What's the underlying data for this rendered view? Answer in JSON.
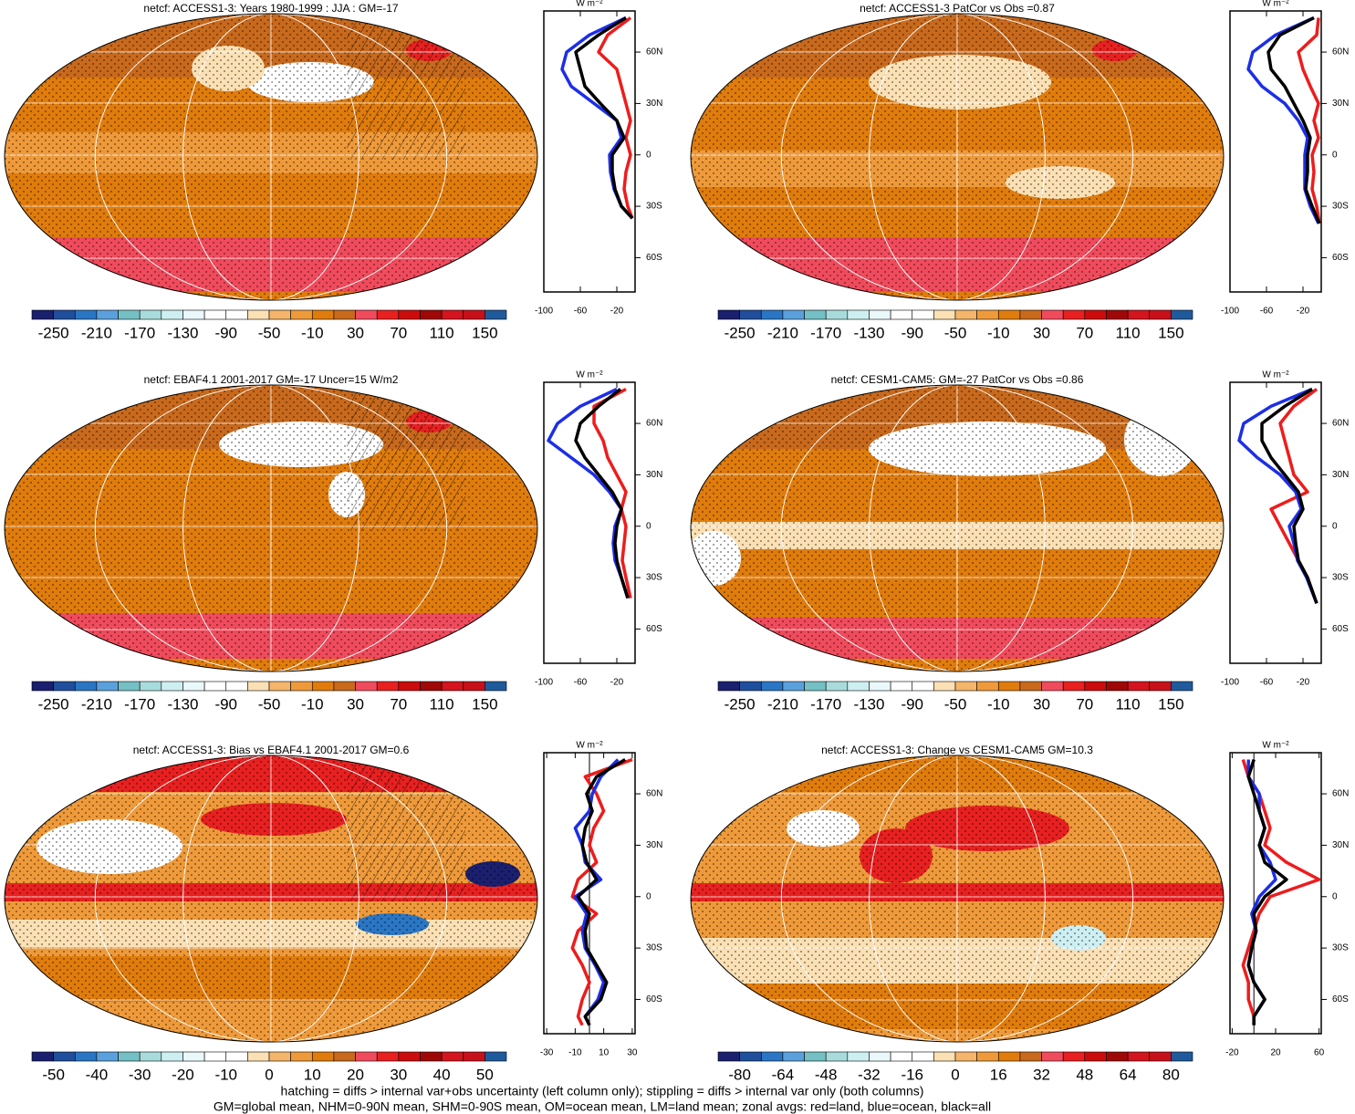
{
  "chart_data": [
    {
      "type": "line",
      "title": "netcf: ACCESS1-3: Years 1980-1999 : JJA : GM=-17",
      "colorbar": {
        "colors": [
          "#1a1f6e",
          "#1f4e9c",
          "#2a76c4",
          "#5aa0dc",
          "#74c0c4",
          "#a8dcdc",
          "#cdeff2",
          "#eaf8fb",
          "#ffffff",
          "#ffffff",
          "#fbe0b4",
          "#f5b56a",
          "#ef9a3a",
          "#e07c0c",
          "#c8691c",
          "#f04b5c",
          "#e82020",
          "#cc0c0c",
          "#a00808",
          "#d4141e",
          "#c8101a",
          "#1f5a9c"
        ],
        "ticks": [
          -250,
          -210,
          -170,
          -130,
          -90,
          -50,
          -10,
          30,
          70,
          110,
          150
        ]
      },
      "xlabel": "W m⁻²",
      "xlim": [
        -100,
        0
      ],
      "xticks": [
        -100,
        -60,
        -20
      ],
      "ylim": [
        -80,
        84
      ],
      "yticks": [
        {
          "value": 60,
          "label": "60N"
        },
        {
          "value": 30,
          "label": "30N"
        },
        0,
        {
          "value": -30,
          "label": "30S"
        },
        {
          "value": -60,
          "label": "60S"
        }
      ],
      "y": [
        80,
        70,
        60,
        50,
        40,
        30,
        20,
        10,
        0,
        -10,
        -20,
        -30,
        -37
      ],
      "series": [
        {
          "color": "#ee1c1c",
          "values": [
            -5,
            -30,
            -40,
            -20,
            -15,
            -10,
            -5,
            -10,
            -5,
            -10,
            -12,
            -8,
            -3
          ]
        },
        {
          "color": "#1c2ee8",
          "values": [
            -10,
            -50,
            -75,
            -80,
            -70,
            -45,
            -20,
            -15,
            -28,
            -27,
            -23,
            -15,
            -3
          ]
        },
        {
          "color": "#000000",
          "values": [
            -10,
            -40,
            -65,
            -60,
            -55,
            -38,
            -20,
            -12,
            -25,
            -25,
            -22,
            -15,
            -3
          ]
        }
      ]
    },
    {
      "type": "line",
      "title": "netcf: ACCESS1-3 PatCor vs Obs =0.87",
      "colorbar": {
        "colors": [
          "#1a1f6e",
          "#1f4e9c",
          "#2a76c4",
          "#5aa0dc",
          "#74c0c4",
          "#a8dcdc",
          "#cdeff2",
          "#eaf8fb",
          "#ffffff",
          "#ffffff",
          "#fbe0b4",
          "#f5b56a",
          "#ef9a3a",
          "#e07c0c",
          "#c8691c",
          "#f04b5c",
          "#e82020",
          "#cc0c0c",
          "#a00808",
          "#d4141e",
          "#c8101a",
          "#1f5a9c"
        ],
        "ticks": [
          -250,
          -210,
          -170,
          -130,
          -90,
          -50,
          -10,
          30,
          70,
          110,
          150
        ]
      },
      "xlabel": "W m⁻²",
      "xlim": [
        -100,
        0
      ],
      "xticks": [
        -100,
        -60,
        -20
      ],
      "ylim": [
        -80,
        84
      ],
      "yticks": [
        {
          "value": 60,
          "label": "60N"
        },
        {
          "value": 30,
          "label": "30N"
        },
        0,
        {
          "value": -30,
          "label": "30S"
        },
        {
          "value": -60,
          "label": "60S"
        }
      ],
      "y": [
        80,
        70,
        60,
        50,
        40,
        30,
        20,
        10,
        0,
        -10,
        -20,
        -30,
        -40
      ],
      "series": [
        {
          "color": "#ee1c1c",
          "values": [
            -3,
            -5,
            -25,
            -20,
            -12,
            -3,
            -8,
            -3,
            -10,
            -8,
            -10,
            -5,
            -2
          ]
        },
        {
          "color": "#1c2ee8",
          "values": [
            -8,
            -50,
            -75,
            -80,
            -65,
            -40,
            -25,
            -15,
            -18,
            -18,
            -18,
            -12,
            -3
          ]
        },
        {
          "color": "#000000",
          "values": [
            -8,
            -45,
            -58,
            -55,
            -40,
            -30,
            -20,
            -12,
            -15,
            -15,
            -17,
            -10,
            -2
          ]
        }
      ]
    },
    {
      "type": "line",
      "title": "netcf: EBAF4.1 2001-2017 GM=-17 Uncer=15 W/m2",
      "colorbar": {
        "colors": [
          "#1a1f6e",
          "#1f4e9c",
          "#2a76c4",
          "#5aa0dc",
          "#74c0c4",
          "#a8dcdc",
          "#cdeff2",
          "#eaf8fb",
          "#ffffff",
          "#ffffff",
          "#fbe0b4",
          "#f5b56a",
          "#ef9a3a",
          "#e07c0c",
          "#c8691c",
          "#f04b5c",
          "#e82020",
          "#cc0c0c",
          "#a00808",
          "#d4141e",
          "#c8101a",
          "#1f5a9c"
        ],
        "ticks": [
          -250,
          -210,
          -170,
          -130,
          -90,
          -50,
          -10,
          30,
          70,
          110,
          150
        ]
      },
      "xlabel": "W m⁻²",
      "xlim": [
        -100,
        0
      ],
      "xticks": [
        -100,
        -60,
        -20
      ],
      "ylim": [
        -80,
        84
      ],
      "yticks": [
        {
          "value": 60,
          "label": "60N"
        },
        {
          "value": 30,
          "label": "30N"
        },
        0,
        {
          "value": -30,
          "label": "30S"
        },
        {
          "value": -60,
          "label": "60S"
        }
      ],
      "y": [
        80,
        70,
        60,
        50,
        40,
        30,
        20,
        10,
        0,
        -10,
        -20,
        -30,
        -42
      ],
      "series": [
        {
          "color": "#ee1c1c",
          "values": [
            -10,
            -45,
            -45,
            -35,
            -30,
            -20,
            -10,
            -15,
            -10,
            -12,
            -14,
            -10,
            -5
          ]
        },
        {
          "color": "#1c2ee8",
          "values": [
            -20,
            -60,
            -85,
            -95,
            -70,
            -45,
            -28,
            -15,
            -22,
            -24,
            -22,
            -15,
            -8
          ]
        },
        {
          "color": "#000000",
          "values": [
            -16,
            -40,
            -60,
            -65,
            -55,
            -40,
            -25,
            -15,
            -20,
            -22,
            -20,
            -15,
            -8
          ]
        }
      ]
    },
    {
      "type": "line",
      "title": "netcf: CESM1-CAM5: GM=-27 PatCor vs Obs =0.86",
      "colorbar": {
        "colors": [
          "#1a1f6e",
          "#1f4e9c",
          "#2a76c4",
          "#5aa0dc",
          "#74c0c4",
          "#a8dcdc",
          "#cdeff2",
          "#eaf8fb",
          "#ffffff",
          "#ffffff",
          "#fbe0b4",
          "#f5b56a",
          "#ef9a3a",
          "#e07c0c",
          "#c8691c",
          "#f04b5c",
          "#e82020",
          "#cc0c0c",
          "#a00808",
          "#d4141e",
          "#c8101a",
          "#1f5a9c"
        ],
        "ticks": [
          -250,
          -210,
          -170,
          -130,
          -90,
          -50,
          -10,
          30,
          70,
          110,
          150
        ]
      },
      "xlabel": "W m⁻²",
      "xlim": [
        -100,
        0
      ],
      "xticks": [
        -100,
        -60,
        -20
      ],
      "ylim": [
        -80,
        84
      ],
      "yticks": [
        {
          "value": 60,
          "label": "60N"
        },
        {
          "value": 30,
          "label": "30N"
        },
        0,
        {
          "value": -30,
          "label": "30S"
        },
        {
          "value": -60,
          "label": "60S"
        }
      ],
      "y": [
        80,
        70,
        60,
        50,
        40,
        30,
        20,
        10,
        0,
        -10,
        -20,
        -30,
        -45
      ],
      "series": [
        {
          "color": "#ee1c1c",
          "values": [
            -5,
            -30,
            -45,
            -40,
            -35,
            -30,
            -15,
            -55,
            -45,
            -35,
            -25,
            -15,
            -5
          ]
        },
        {
          "color": "#1c2ee8",
          "values": [
            -10,
            -55,
            -85,
            -90,
            -70,
            -45,
            -28,
            -22,
            -35,
            -30,
            -26,
            -16,
            -5
          ]
        },
        {
          "color": "#000000",
          "values": [
            -10,
            -40,
            -65,
            -65,
            -55,
            -40,
            -25,
            -20,
            -30,
            -28,
            -25,
            -15,
            -5
          ]
        }
      ]
    },
    {
      "type": "line",
      "title": "netcf: ACCESS1-3: Bias vs EBAF4.1 2001-2017 GM=0.6",
      "colorbar": {
        "colors": [
          "#1a1f6e",
          "#1f4e9c",
          "#2a76c4",
          "#5aa0dc",
          "#74c0c4",
          "#a8dcdc",
          "#cdeff2",
          "#eaf8fb",
          "#ffffff",
          "#ffffff",
          "#fbe0b4",
          "#f5b56a",
          "#ef9a3a",
          "#e07c0c",
          "#c8691c",
          "#f04b5c",
          "#e82020",
          "#cc0c0c",
          "#a00808",
          "#d4141e",
          "#c8101a",
          "#1f5a9c"
        ],
        "ticks": [
          -50,
          -40,
          -30,
          -20,
          -10,
          0,
          10,
          20,
          30,
          40,
          50
        ]
      },
      "xlabel": "W m⁻²",
      "xlim": [
        -32,
        32
      ],
      "xticks": [
        -30,
        -10,
        10,
        30
      ],
      "refline": 0,
      "ylim": [
        -80,
        84
      ],
      "yticks": [
        {
          "value": 60,
          "label": "60N"
        },
        {
          "value": 30,
          "label": "30N"
        },
        0,
        {
          "value": -30,
          "label": "30S"
        },
        {
          "value": -60,
          "label": "60S"
        }
      ],
      "y": [
        80,
        70,
        60,
        50,
        40,
        30,
        20,
        10,
        0,
        -10,
        -20,
        -30,
        -40,
        -50,
        -60,
        -70,
        -75
      ],
      "series": [
        {
          "color": "#ee1c1c",
          "values": [
            30,
            -3,
            5,
            10,
            3,
            0,
            5,
            -8,
            -12,
            5,
            -8,
            -12,
            -5,
            0,
            -5,
            -8,
            -5
          ]
        },
        {
          "color": "#1c2ee8",
          "values": [
            20,
            8,
            2,
            0,
            -10,
            -5,
            -3,
            8,
            -10,
            -2,
            -5,
            -3,
            4,
            10,
            6,
            -3,
            0
          ]
        },
        {
          "color": "#000000",
          "values": [
            25,
            5,
            -2,
            2,
            -3,
            -5,
            -2,
            5,
            -8,
            0,
            -3,
            -2,
            5,
            12,
            8,
            -3,
            0
          ]
        }
      ]
    },
    {
      "type": "line",
      "title": "netcf: ACCESS1-3: Change vs CESM1-CAM5 GM=10.3",
      "colorbar": {
        "colors": [
          "#1a1f6e",
          "#1f4e9c",
          "#2a76c4",
          "#5aa0dc",
          "#74c0c4",
          "#a8dcdc",
          "#cdeff2",
          "#eaf8fb",
          "#ffffff",
          "#ffffff",
          "#fbe0b4",
          "#f5b56a",
          "#ef9a3a",
          "#e07c0c",
          "#c8691c",
          "#f04b5c",
          "#e82020",
          "#cc0c0c",
          "#a00808",
          "#d4141e",
          "#c8101a",
          "#1f5a9c"
        ],
        "ticks": [
          -80,
          -64,
          -48,
          -32,
          -16,
          0,
          16,
          32,
          48,
          64,
          80
        ]
      },
      "xlabel": "W m⁻²",
      "xlim": [
        -22,
        62
      ],
      "xticks": [
        -20,
        20,
        60
      ],
      "refline": 0,
      "ylim": [
        -80,
        84
      ],
      "yticks": [
        {
          "value": 60,
          "label": "60N"
        },
        {
          "value": 30,
          "label": "30N"
        },
        0,
        {
          "value": -30,
          "label": "30S"
        },
        {
          "value": -60,
          "label": "60S"
        }
      ],
      "y": [
        80,
        70,
        60,
        50,
        40,
        30,
        20,
        10,
        0,
        -10,
        -20,
        -30,
        -40,
        -50,
        -60,
        -70,
        -75
      ],
      "series": [
        {
          "color": "#ee1c1c",
          "values": [
            -10,
            -5,
            5,
            10,
            15,
            10,
            30,
            60,
            15,
            5,
            0,
            -5,
            -10,
            -5,
            -5,
            0,
            0
          ]
        },
        {
          "color": "#1c2ee8",
          "values": [
            -5,
            -5,
            5,
            5,
            10,
            5,
            15,
            20,
            5,
            -2,
            2,
            -2,
            -5,
            0,
            10,
            0,
            0
          ]
        },
        {
          "color": "#000000",
          "values": [
            0,
            -5,
            0,
            5,
            10,
            5,
            10,
            30,
            10,
            0,
            2,
            -2,
            -5,
            0,
            10,
            0,
            0
          ]
        }
      ]
    }
  ],
  "notes": [
    "hatching = diffs > internal var+obs uncertainty (left column only); stippling = diffs > internal var only (both columns)",
    "GM=global mean, NHM=0-90N mean, SHM=0-90S mean, OM=ocean mean, LM=land mean; zonal avgs: red=land, blue=ocean, black=all"
  ]
}
